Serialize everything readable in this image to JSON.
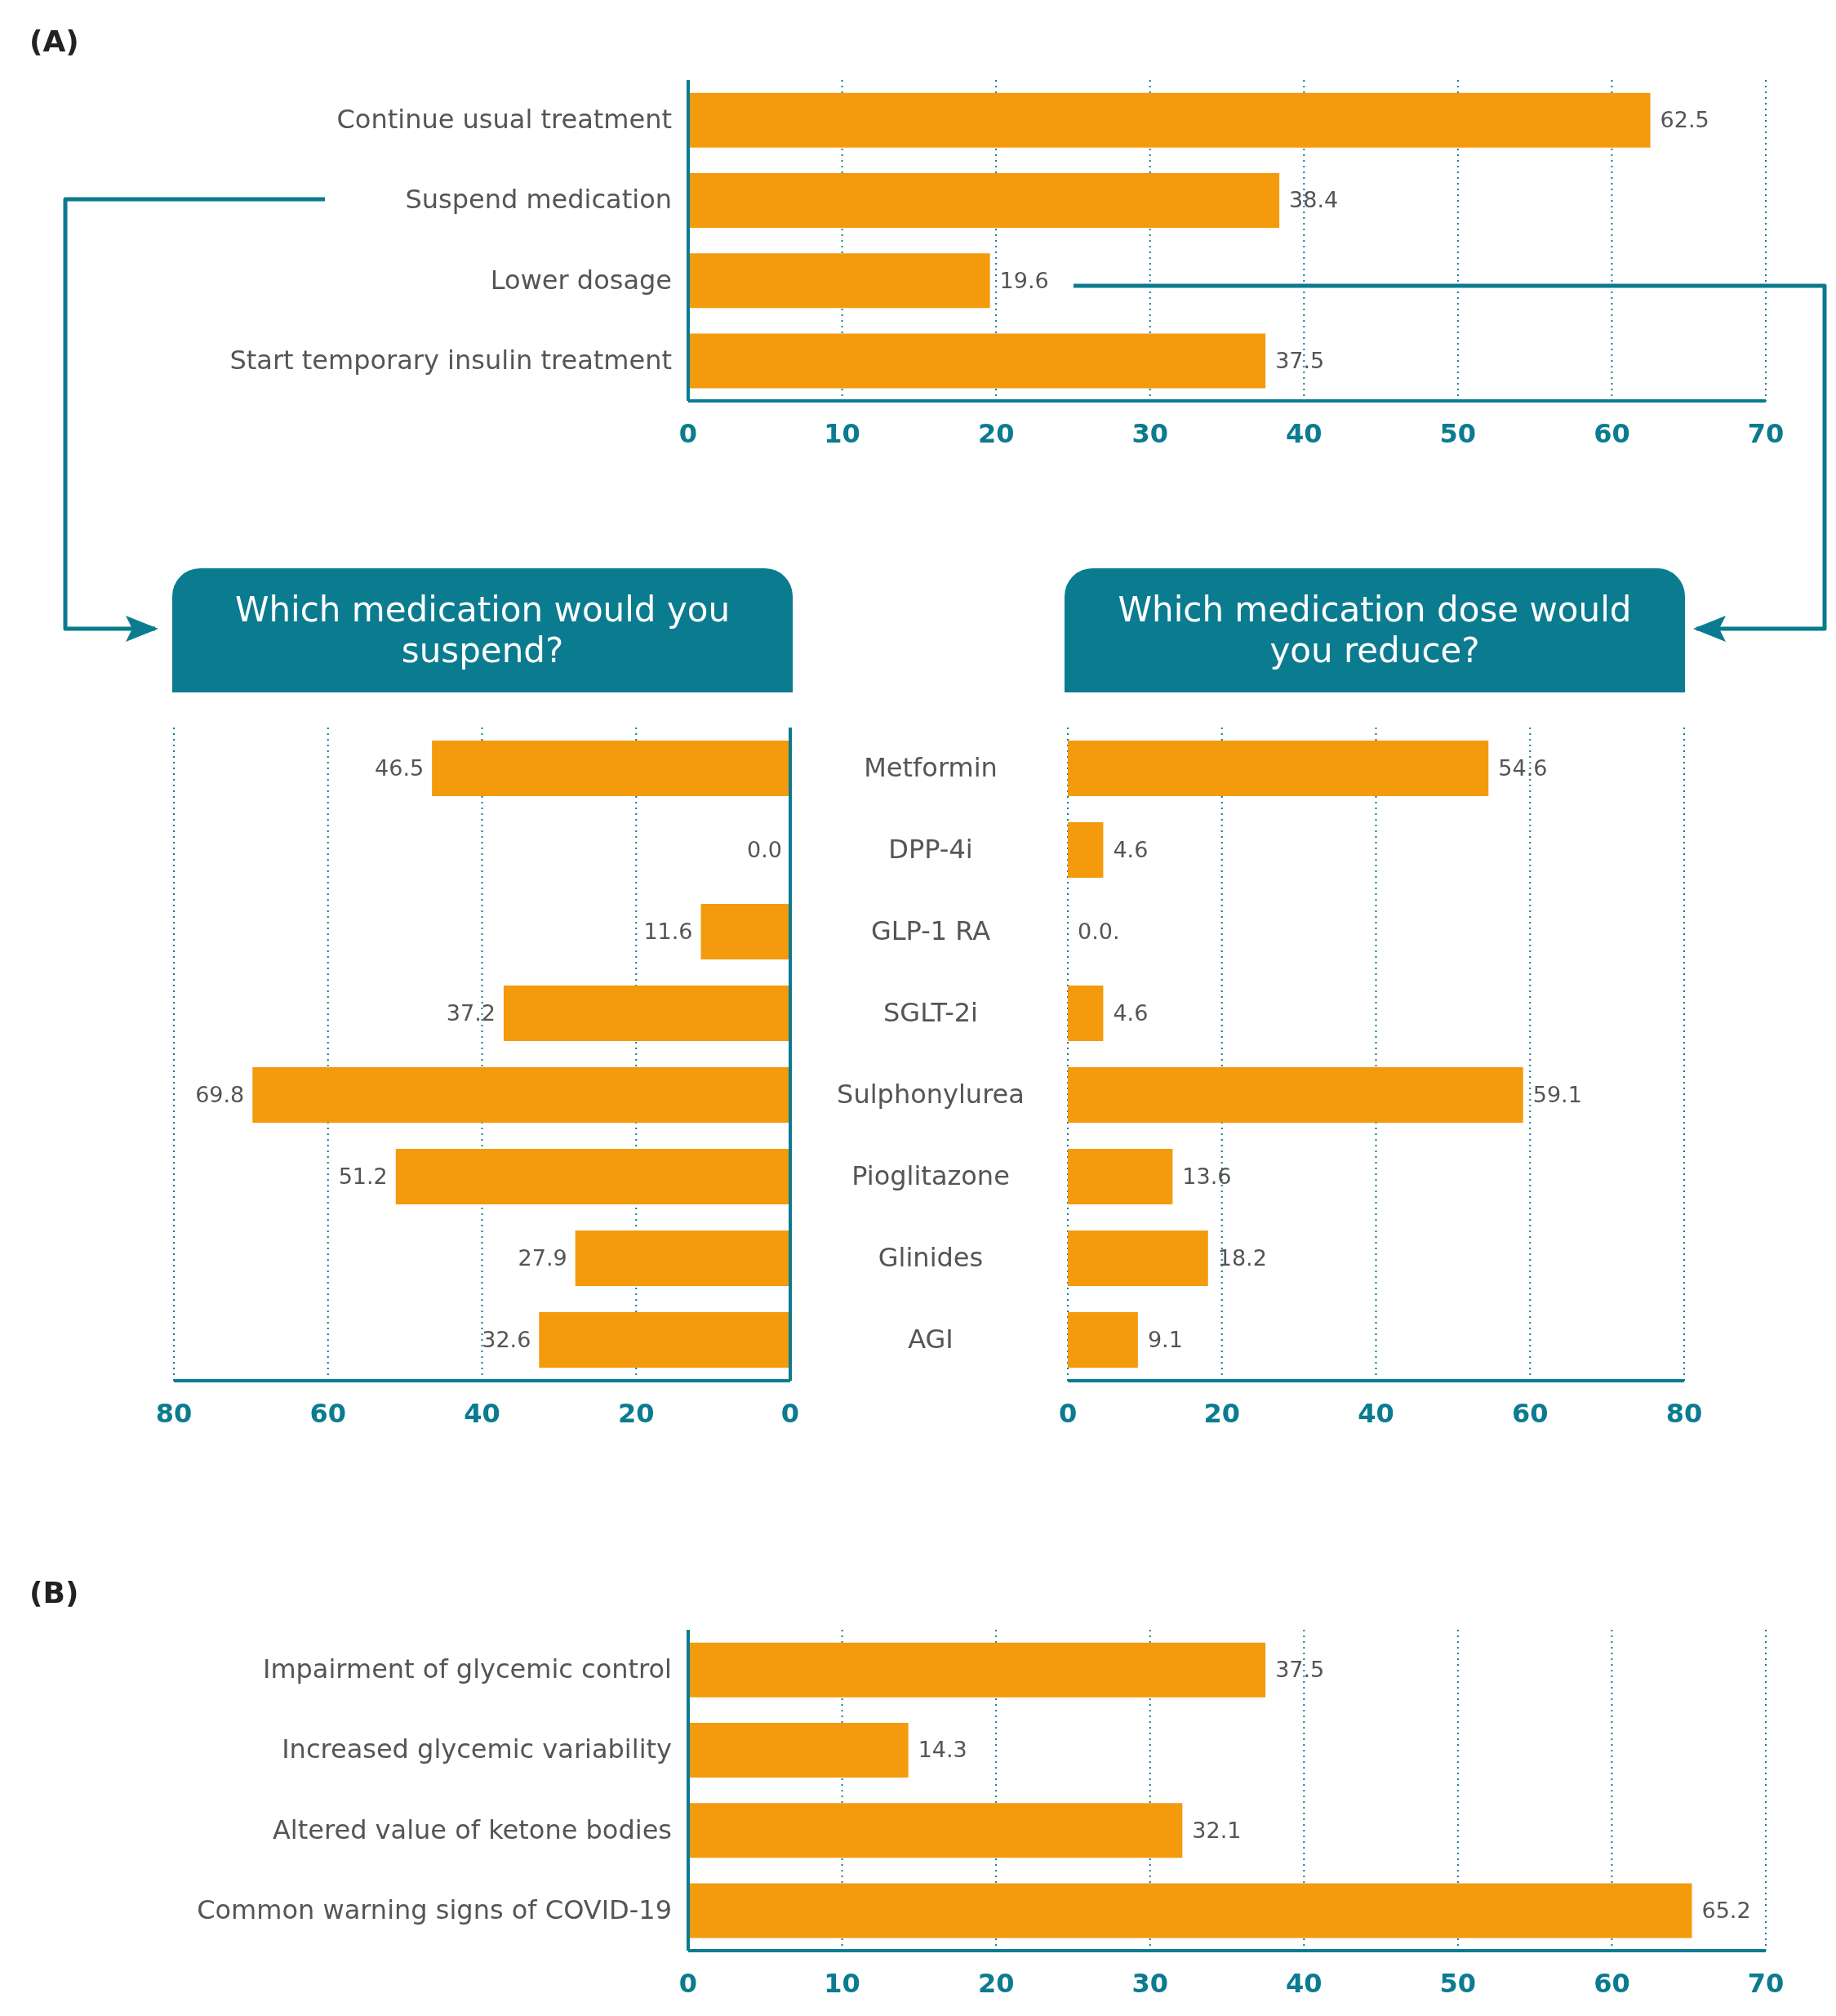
{
  "chart_data": [
    {
      "type": "bar",
      "orientation": "horizontal",
      "annotations": [
        "(A)"
      ],
      "categories": [
        "Continue usual treatment",
        "Suspend medication",
        "Lower dosage",
        "Start temporary insulin treatment"
      ],
      "values": [
        62.5,
        38.4,
        19.6,
        37.5
      ],
      "value_labels": [
        "62.5",
        "38.4",
        "19.6",
        "37.5"
      ],
      "color": "#f39a0d",
      "xlim": [
        0,
        70
      ],
      "xticks": [
        0,
        10,
        20,
        30,
        40,
        50,
        60,
        70
      ],
      "grid": "x"
    },
    {
      "type": "bar",
      "orientation": "horizontal",
      "title": "Which medication would you suspend?",
      "categories": [
        "Metformin",
        "DPP-4i",
        "GLP-1 RA",
        "SGLT-2i",
        "Sulphonylurea",
        "Pioglitazone",
        "Glinides",
        "AGI"
      ],
      "values": [
        46.5,
        0.0,
        11.6,
        37.2,
        69.8,
        51.2,
        27.9,
        32.6
      ],
      "value_labels": [
        "46.5",
        "0.0",
        "11.6",
        "37.2",
        "69.8",
        "51.2",
        "27.9",
        "32.6"
      ],
      "color": "#f39a0d",
      "xlim": [
        80,
        0
      ],
      "xticks": [
        80,
        60,
        40,
        20,
        0
      ],
      "grid": "x"
    },
    {
      "type": "bar",
      "orientation": "horizontal",
      "title": "Which medication dose would you reduce?",
      "categories": [
        null,
        null,
        null,
        null,
        null,
        null,
        null,
        null
      ],
      "values": [
        54.6,
        4.6,
        0.0,
        4.6,
        59.1,
        13.6,
        18.2,
        9.1
      ],
      "value_labels": [
        "54.6",
        "4.6",
        "0.0.",
        "4.6",
        "59.1",
        "13.6",
        "18.2",
        "9.1"
      ],
      "color": "#f39a0d",
      "xlim": [
        0,
        80
      ],
      "xticks": [
        0,
        20,
        40,
        60,
        80
      ],
      "grid": "x",
      "tick_labels": "x"
    },
    {
      "type": "bar",
      "orientation": "horizontal",
      "annotations": [
        "(B)"
      ],
      "categories": [
        "Impairment of glycemic control",
        "Increased glycemic variability",
        "Altered value of ketone bodies",
        "Common warning signs of COVID-19"
      ],
      "values": [
        37.5,
        14.3,
        32.1,
        65.2
      ],
      "value_labels": [
        "37.5",
        "14.3",
        "32.1",
        "65.2"
      ],
      "color": "#f39a0d",
      "xlim": [
        0,
        70
      ],
      "xticks": [
        0,
        10,
        20,
        30,
        40,
        50,
        60,
        70
      ],
      "grid": "x"
    }
  ]
}
